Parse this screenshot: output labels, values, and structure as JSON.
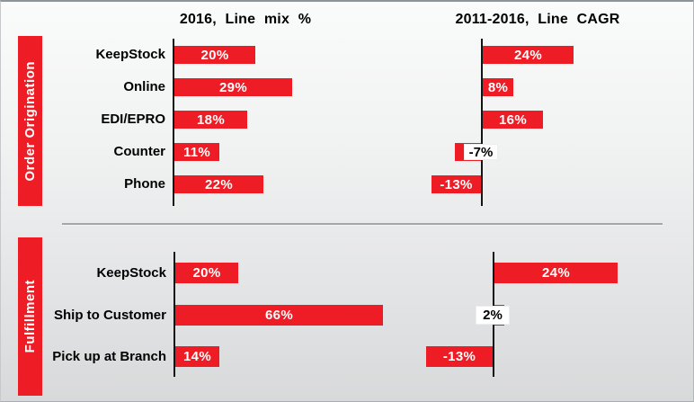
{
  "page": {
    "headers": [
      {
        "label": "2016, Line mix %"
      },
      {
        "label": "2011-2016, Line CAGR"
      }
    ],
    "sections": [
      {
        "label": "Order Origination"
      },
      {
        "label": "Fulfillment"
      }
    ]
  },
  "colors": {
    "bar_red": "#EE1C25",
    "axis_black": "#141414",
    "header_text": "#000000",
    "section_band_text": "#ffffff",
    "tiny_label_chip_bg": "#ffffff"
  },
  "chart_data": [
    {
      "type": "bar",
      "orientation": "horizontal",
      "section": "Order Origination",
      "title": "2016, Line mix %",
      "categories": [
        "KeepStock",
        "Online",
        "EDI/EPRO",
        "Counter",
        "Phone"
      ],
      "values": [
        20,
        29,
        18,
        11,
        22
      ],
      "labels": [
        "20%",
        "29%",
        "18%",
        "11%",
        "22%"
      ],
      "value_format": "percent",
      "grid": false,
      "legend": false,
      "baseline": 0
    },
    {
      "type": "bar",
      "orientation": "horizontal",
      "section": "Order Origination",
      "title": "2011-2016, Line CAGR",
      "categories": [
        "KeepStock",
        "Online",
        "EDI/EPRO",
        "Counter",
        "Phone"
      ],
      "values": [
        24,
        8,
        16,
        -7,
        -13
      ],
      "labels": [
        "24%",
        "8%",
        "16%",
        "-7%",
        "-13%"
      ],
      "value_format": "percent",
      "grid": false,
      "legend": false,
      "baseline": 0
    },
    {
      "type": "bar",
      "orientation": "horizontal",
      "section": "Fulfillment",
      "title": "2016, Line mix %",
      "categories": [
        "KeepStock",
        "Ship to Customer",
        "Pick up at Branch"
      ],
      "values": [
        20,
        66,
        14
      ],
      "labels": [
        "20%",
        "66%",
        "14%"
      ],
      "value_format": "percent",
      "grid": false,
      "legend": false,
      "baseline": 0
    },
    {
      "type": "bar",
      "orientation": "horizontal",
      "section": "Fulfillment",
      "title": "2011-2016, Line CAGR",
      "categories": [
        "KeepStock",
        "Ship to Customer",
        "Pick up at Branch"
      ],
      "values": [
        24,
        2,
        -13
      ],
      "labels": [
        "24%",
        "2%",
        "-13%"
      ],
      "value_format": "percent",
      "grid": false,
      "legend": false,
      "baseline": 0
    }
  ]
}
